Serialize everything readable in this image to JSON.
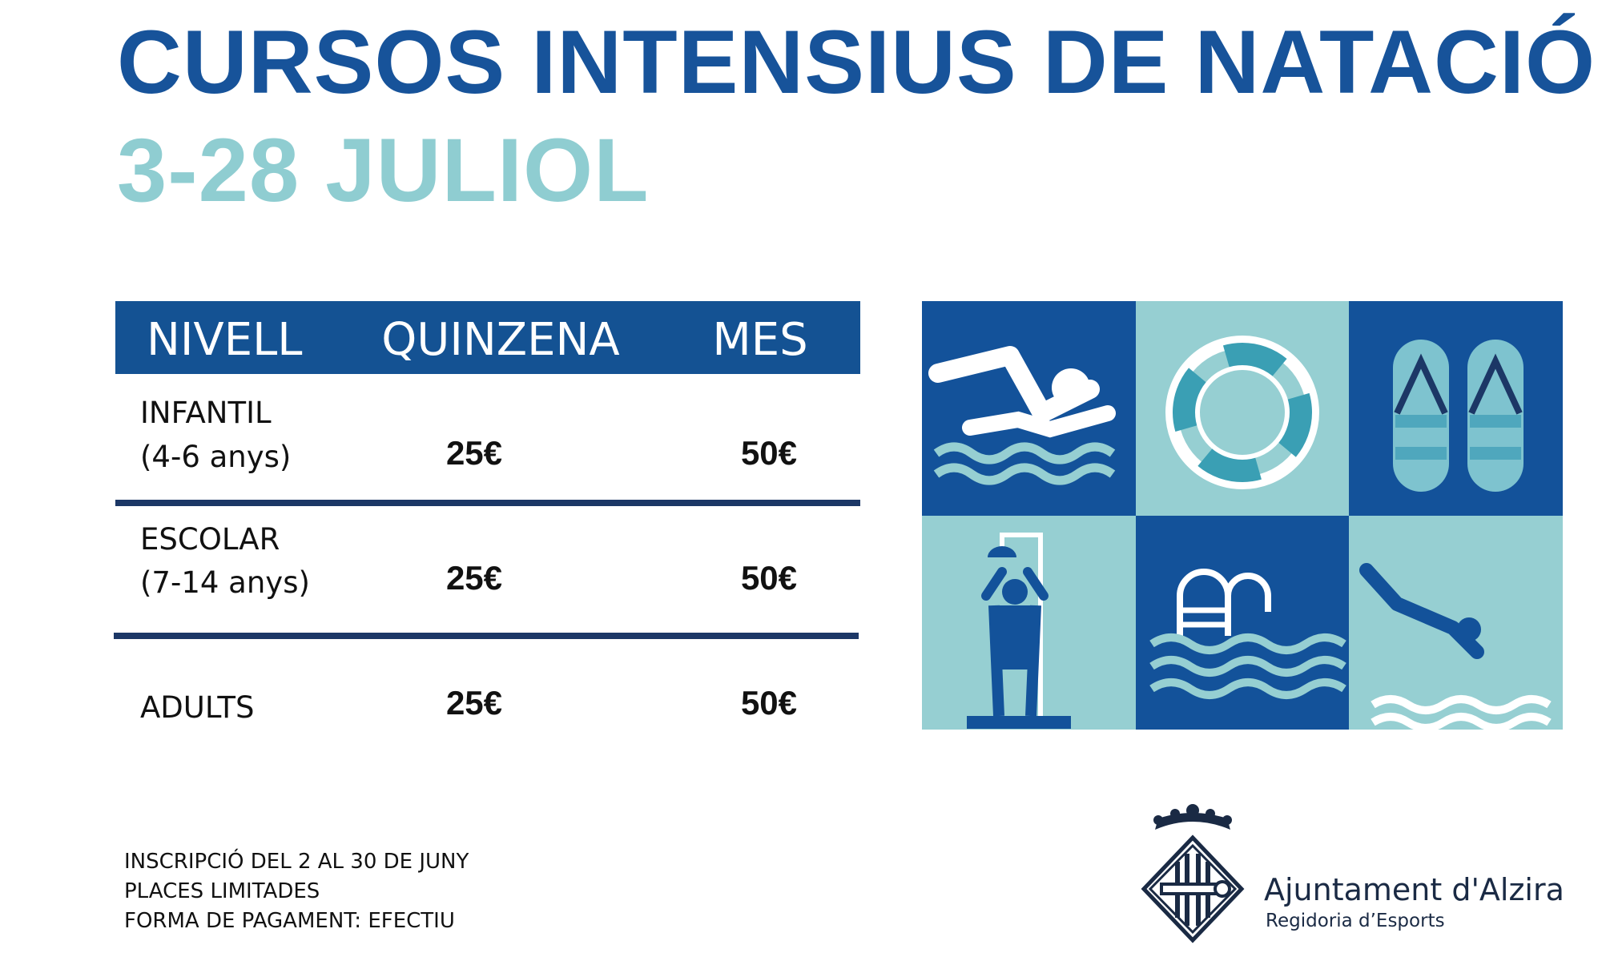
{
  "header": {
    "title": "CURSOS INTENSIUS DE NATACIÓ",
    "subtitle": "3-28 JULIOL"
  },
  "table": {
    "columns": [
      "NIVELL",
      "QUINZENA",
      "MES"
    ],
    "rows": [
      [
        [
          "INFANTIL",
          "(4-6 anys)"
        ],
        "25€",
        "50€"
      ],
      [
        [
          "ESCOLAR",
          "(7-14 anys)"
        ],
        "25€",
        "50€"
      ],
      [
        [
          "ADULTS"
        ],
        "25€",
        "50€"
      ]
    ]
  },
  "notes": [
    "INSCRIPCIÓ DEL 2 AL 30 DE JUNY",
    "PLACES LIMITADES",
    "FORMA DE PAGAMENT: EFECTIU"
  ],
  "logo": {
    "name": "Ajuntament d'Alzira",
    "department": "Regidoria d’Esports"
  }
}
